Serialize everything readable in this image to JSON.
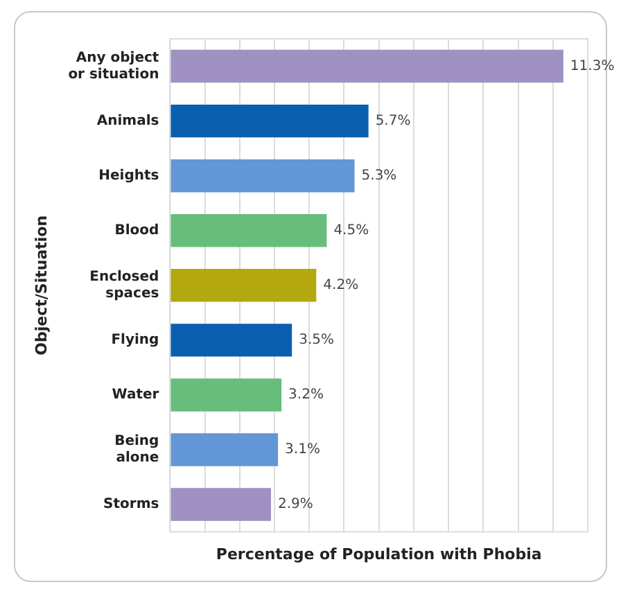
{
  "chart_data": {
    "type": "bar",
    "orientation": "horizontal",
    "xlabel": "Percentage of Population with Phobia",
    "ylabel": "Object/Situation",
    "categories": [
      "Any object\nor situation",
      "Animals",
      "Heights",
      "Blood",
      "Enclosed\nspaces",
      "Flying",
      "Water",
      "Being\nalone",
      "Storms"
    ],
    "values": [
      11.3,
      5.7,
      5.3,
      4.5,
      4.2,
      3.5,
      3.2,
      3.1,
      2.9
    ],
    "colors": [
      "#9f92c2",
      "#0a5fb0",
      "#6396d6",
      "#66bd7c",
      "#b3a80d",
      "#0a5fb0",
      "#66bd7c",
      "#6396d6",
      "#9f92c2"
    ],
    "value_labels": [
      "11.3%",
      "5.7%",
      "5.3%",
      "4.5%",
      "4.2%",
      "3.5%",
      "3.2%",
      "3.1%",
      "2.9%"
    ],
    "xlim": [
      0,
      12
    ],
    "xticks": [
      {
        "value": 0,
        "label": null
      },
      {
        "value": 1,
        "label": null
      },
      {
        "value": 2,
        "label": null
      },
      {
        "value": 3,
        "label": null
      },
      {
        "value": 4,
        "label": null
      },
      {
        "value": 5,
        "label": null
      },
      {
        "value": 6,
        "label": null
      },
      {
        "value": 7,
        "label": null
      },
      {
        "value": 8,
        "label": null
      },
      {
        "value": 9,
        "label": null
      },
      {
        "value": 10,
        "label": null
      },
      {
        "value": 11,
        "label": null
      },
      {
        "value": 12,
        "label": null
      }
    ],
    "grid": "x",
    "legend": false
  }
}
